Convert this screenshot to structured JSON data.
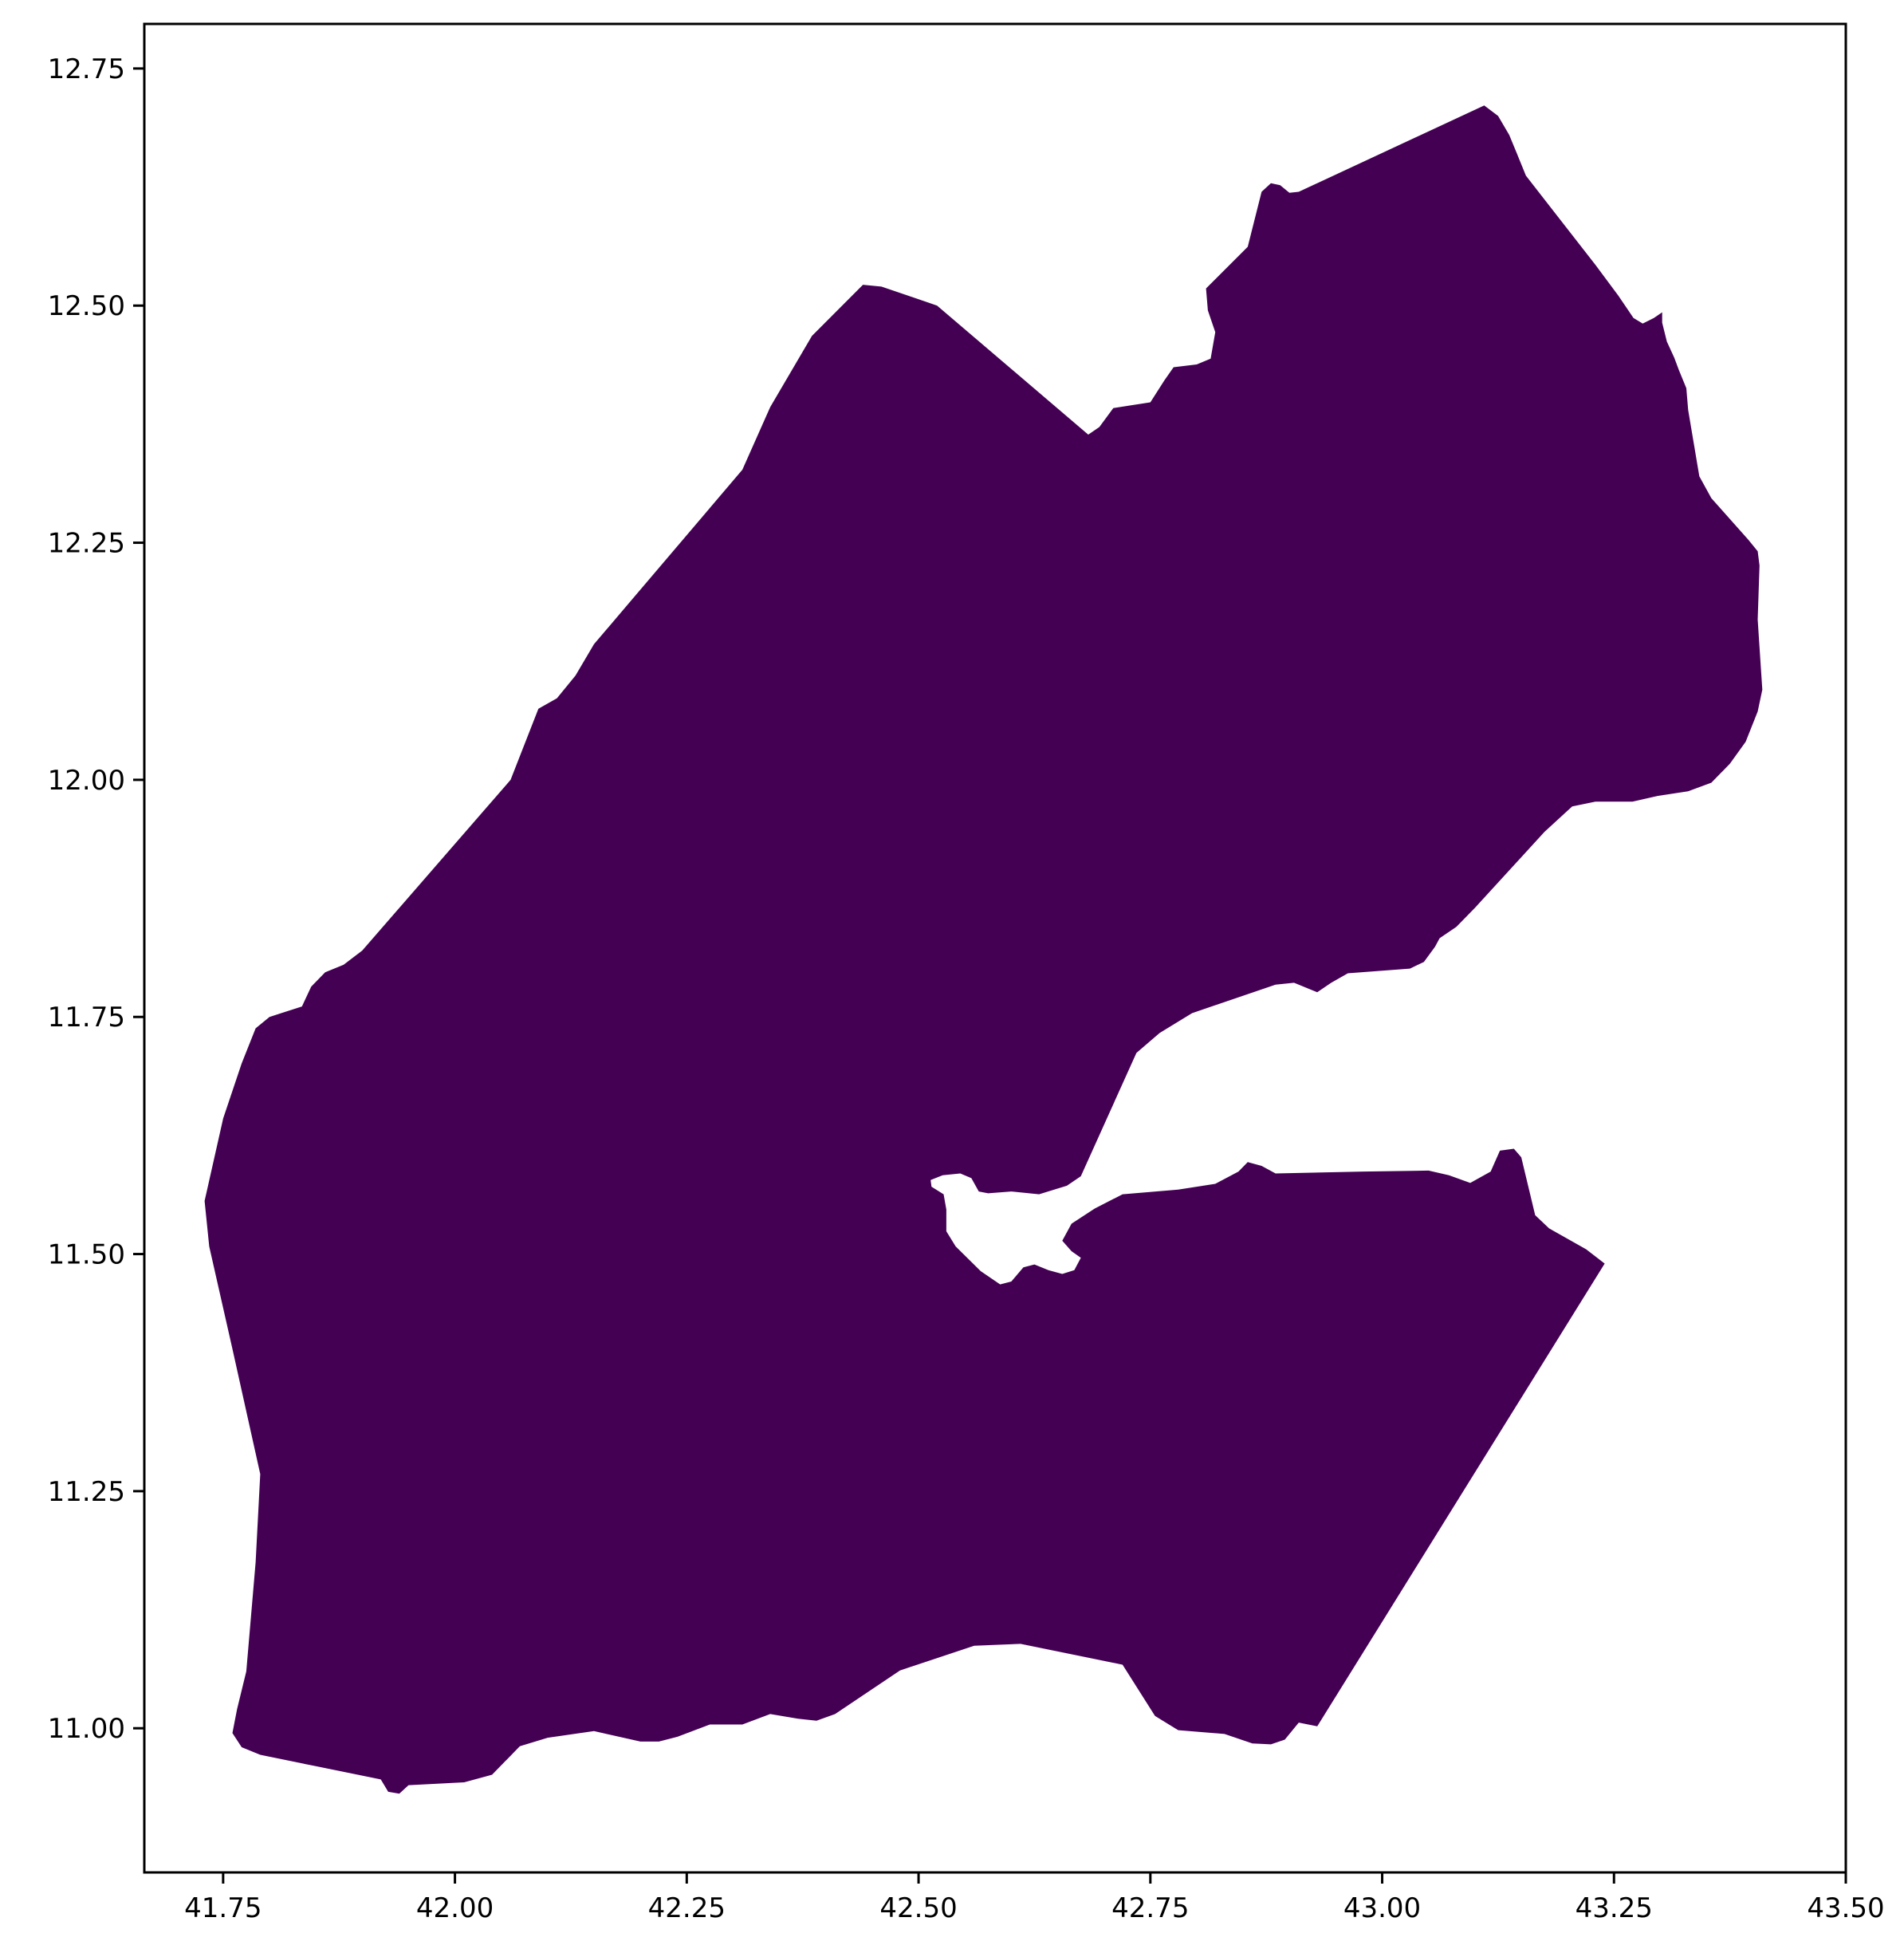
{
  "map": {
    "fill_color": "#440154",
    "frame_color": "#000000",
    "background": "#ffffff",
    "x_range": [
      41.665,
      43.5
    ],
    "y_range": [
      10.848,
      12.797
    ],
    "x_ticks": [
      "41.75",
      "42.00",
      "42.25",
      "42.50",
      "42.75",
      "43.00",
      "43.25",
      "43.50"
    ],
    "y_ticks": [
      "11.00",
      "11.25",
      "11.50",
      "11.75",
      "12.00",
      "12.25",
      "12.50",
      "12.75"
    ],
    "outline": [
      [
        41.76,
        10.995
      ],
      [
        41.77,
        10.98
      ],
      [
        41.79,
        10.972
      ],
      [
        41.85,
        10.96
      ],
      [
        41.92,
        10.946
      ],
      [
        41.928,
        10.933
      ],
      [
        41.94,
        10.931
      ],
      [
        41.95,
        10.94
      ],
      [
        42.01,
        10.943
      ],
      [
        42.04,
        10.951
      ],
      [
        42.07,
        10.981
      ],
      [
        42.1,
        10.99
      ],
      [
        42.15,
        10.997
      ],
      [
        42.2,
        10.986
      ],
      [
        42.22,
        10.986
      ],
      [
        42.24,
        10.991
      ],
      [
        42.275,
        11.004
      ],
      [
        42.31,
        11.004
      ],
      [
        42.34,
        11.015
      ],
      [
        42.37,
        11.01
      ],
      [
        42.39,
        11.008
      ],
      [
        42.41,
        11.015
      ],
      [
        42.48,
        11.061
      ],
      [
        42.56,
        11.087
      ],
      [
        42.61,
        11.089
      ],
      [
        42.69,
        11.073
      ],
      [
        42.72,
        11.067
      ],
      [
        42.755,
        11.013
      ],
      [
        42.78,
        10.998
      ],
      [
        42.83,
        10.994
      ],
      [
        42.86,
        10.984
      ],
      [
        42.88,
        10.983
      ],
      [
        42.895,
        10.988
      ],
      [
        42.91,
        11.006
      ],
      [
        42.93,
        11.002
      ],
      [
        43.24,
        11.49
      ],
      [
        43.22,
        11.505
      ],
      [
        43.18,
        11.527
      ],
      [
        43.165,
        11.541
      ],
      [
        43.15,
        11.602
      ],
      [
        43.142,
        11.611
      ],
      [
        43.127,
        11.609
      ],
      [
        43.117,
        11.587
      ],
      [
        43.095,
        11.575
      ],
      [
        43.072,
        11.583
      ],
      [
        43.05,
        11.588
      ],
      [
        42.98,
        11.587
      ],
      [
        42.885,
        11.585
      ],
      [
        42.87,
        11.593
      ],
      [
        42.855,
        11.597
      ],
      [
        42.845,
        11.587
      ],
      [
        42.82,
        11.574
      ],
      [
        42.78,
        11.568
      ],
      [
        42.72,
        11.563
      ],
      [
        42.69,
        11.548
      ],
      [
        42.665,
        11.532
      ],
      [
        42.655,
        11.514
      ],
      [
        42.665,
        11.503
      ],
      [
        42.675,
        11.496
      ],
      [
        42.668,
        11.483
      ],
      [
        42.655,
        11.479
      ],
      [
        42.64,
        11.483
      ],
      [
        42.625,
        11.489
      ],
      [
        42.613,
        11.486
      ],
      [
        42.6,
        11.471
      ],
      [
        42.588,
        11.468
      ],
      [
        42.567,
        11.482
      ],
      [
        42.54,
        11.508
      ],
      [
        42.53,
        11.524
      ],
      [
        42.53,
        11.547
      ],
      [
        42.527,
        11.563
      ],
      [
        42.514,
        11.571
      ],
      [
        42.513,
        11.578
      ],
      [
        42.526,
        11.583
      ],
      [
        42.545,
        11.585
      ],
      [
        42.557,
        11.58
      ],
      [
        42.565,
        11.566
      ],
      [
        42.575,
        11.564
      ],
      [
        42.6,
        11.566
      ],
      [
        42.63,
        11.563
      ],
      [
        42.66,
        11.572
      ],
      [
        42.675,
        11.582
      ],
      [
        42.735,
        11.712
      ],
      [
        42.76,
        11.733
      ],
      [
        42.795,
        11.754
      ],
      [
        42.885,
        11.784
      ],
      [
        42.905,
        11.786
      ],
      [
        42.93,
        11.776
      ],
      [
        42.945,
        11.786
      ],
      [
        42.963,
        11.796
      ],
      [
        43.03,
        11.801
      ],
      [
        43.045,
        11.808
      ],
      [
        43.057,
        11.824
      ],
      [
        43.062,
        11.833
      ],
      [
        43.08,
        11.845
      ],
      [
        43.1,
        11.865
      ],
      [
        43.175,
        11.945
      ],
      [
        43.205,
        11.972
      ],
      [
        43.23,
        11.977
      ],
      [
        43.27,
        11.977
      ],
      [
        43.297,
        11.983
      ],
      [
        43.33,
        11.988
      ],
      [
        43.355,
        11.997
      ],
      [
        43.375,
        12.017
      ],
      [
        43.392,
        12.04
      ],
      [
        43.405,
        12.072
      ],
      [
        43.41,
        12.095
      ],
      [
        43.405,
        12.169
      ],
      [
        43.407,
        12.226
      ],
      [
        43.405,
        12.241
      ],
      [
        43.395,
        12.253
      ],
      [
        43.355,
        12.297
      ],
      [
        43.342,
        12.32
      ],
      [
        43.33,
        12.39
      ],
      [
        43.328,
        12.413
      ],
      [
        43.32,
        12.432
      ],
      [
        43.315,
        12.445
      ],
      [
        43.307,
        12.462
      ],
      [
        43.302,
        12.482
      ],
      [
        43.302,
        12.493
      ],
      [
        43.293,
        12.487
      ],
      [
        43.281,
        12.481
      ],
      [
        43.271,
        12.487
      ],
      [
        43.255,
        12.51
      ],
      [
        43.23,
        12.543
      ],
      [
        43.155,
        12.637
      ],
      [
        43.145,
        12.661
      ],
      [
        43.137,
        12.68
      ],
      [
        43.125,
        12.7
      ],
      [
        43.11,
        12.711
      ],
      [
        42.91,
        12.62
      ],
      [
        42.9,
        12.619
      ],
      [
        42.89,
        12.627
      ],
      [
        42.88,
        12.629
      ],
      [
        42.87,
        12.62
      ],
      [
        42.855,
        12.562
      ],
      [
        42.81,
        12.518
      ],
      [
        42.812,
        12.495
      ],
      [
        42.82,
        12.472
      ],
      [
        42.815,
        12.444
      ],
      [
        42.8,
        12.438
      ],
      [
        42.775,
        12.435
      ],
      [
        42.765,
        12.421
      ],
      [
        42.75,
        12.398
      ],
      [
        42.71,
        12.392
      ],
      [
        42.695,
        12.372
      ],
      [
        42.683,
        12.364
      ],
      [
        42.52,
        12.5
      ],
      [
        42.49,
        12.51
      ],
      [
        42.46,
        12.52
      ],
      [
        42.44,
        12.522
      ],
      [
        42.385,
        12.468
      ],
      [
        42.34,
        12.393
      ],
      [
        42.31,
        12.327
      ],
      [
        42.15,
        12.143
      ],
      [
        42.13,
        12.11
      ],
      [
        42.11,
        12.086
      ],
      [
        42.09,
        12.075
      ],
      [
        42.06,
        12.0
      ],
      [
        41.9,
        11.82
      ],
      [
        41.88,
        11.805
      ],
      [
        41.86,
        11.797
      ],
      [
        41.845,
        11.782
      ],
      [
        41.835,
        11.761
      ],
      [
        41.8,
        11.75
      ],
      [
        41.785,
        11.738
      ],
      [
        41.77,
        11.701
      ],
      [
        41.75,
        11.643
      ],
      [
        41.73,
        11.556
      ],
      [
        41.735,
        11.508
      ],
      [
        41.76,
        11.4
      ],
      [
        41.79,
        11.268
      ],
      [
        41.785,
        11.175
      ],
      [
        41.775,
        11.06
      ],
      [
        41.765,
        11.02
      ],
      [
        41.76,
        10.995
      ]
    ]
  }
}
